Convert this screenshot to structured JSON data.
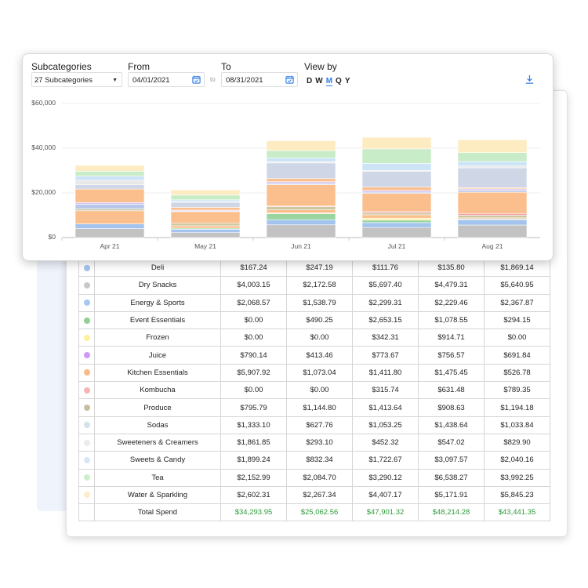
{
  "controls": {
    "subcategories_label": "Subcategories",
    "subcategories_value": "27 Subcategories",
    "from_label": "From",
    "from_value": "04/01/2021",
    "to_label": "To",
    "to_value": "08/31/2021",
    "to_separator": "to",
    "view_by_label": "View by",
    "view_options": [
      "D",
      "W",
      "M",
      "Q",
      "Y"
    ],
    "view_selected": "M"
  },
  "colors": {
    "accent": "#2c7be5",
    "total_green": "#2e9b3a"
  },
  "chart_data": {
    "type": "bar",
    "stacked": true,
    "categories": [
      "Apr 21",
      "May 21",
      "Jun 21",
      "Jul 21",
      "Aug 21"
    ],
    "y_ticks": [
      "$0",
      "$20,000",
      "$40,000",
      "$60,000"
    ],
    "ylim": [
      0,
      60000
    ],
    "grid": true,
    "series": [
      {
        "color": "#c2c2c2",
        "values": [
          4000,
          2200,
          5700,
          4500,
          5600
        ]
      },
      {
        "color": "#a4c4ee",
        "values": [
          2100,
          1500,
          2300,
          2200,
          2400
        ]
      },
      {
        "color": "#9ad5a0",
        "values": [
          0,
          500,
          2700,
          1100,
          300
        ]
      },
      {
        "color": "#fff1a8",
        "values": [
          0,
          0,
          300,
          900,
          0
        ]
      },
      {
        "color": "#fbbf8e",
        "values": [
          5900,
          1100,
          1400,
          1500,
          500
        ]
      },
      {
        "color": "#cfc7a0",
        "values": [
          800,
          1100,
          1400,
          900,
          1200
        ]
      },
      {
        "color": "#f4a0a0",
        "values": [
          0,
          0,
          300,
          600,
          800
        ]
      },
      {
        "color": "#fbbf8e",
        "values": [
          0,
          5200,
          9600,
          8100,
          9500
        ]
      },
      {
        "color": "#b9c8e8",
        "values": [
          2100,
          300,
          500,
          500,
          800
        ]
      },
      {
        "color": "#d8c4f0",
        "values": [
          800,
          400,
          800,
          800,
          700
        ]
      },
      {
        "color": "#fbbf8e",
        "values": [
          6000,
          1200,
          1400,
          1500,
          500
        ]
      },
      {
        "color": "#cfd6e6",
        "values": [
          2000,
          2300,
          7000,
          7000,
          8900
        ]
      },
      {
        "color": "#e8e8e8",
        "values": [
          1900,
          300,
          500,
          500,
          800
        ]
      },
      {
        "color": "#cde4f7",
        "values": [
          1900,
          800,
          1700,
          3100,
          2000
        ]
      },
      {
        "color": "#c8ebc8",
        "values": [
          2200,
          2100,
          3300,
          6500,
          4000
        ]
      },
      {
        "color": "#fdebc2",
        "values": [
          2600,
          2300,
          4400,
          5200,
          5800
        ]
      }
    ]
  },
  "table": {
    "rows": [
      {
        "color": "#a4c4ee",
        "name": "Deli",
        "values": [
          "$167.24",
          "$247.19",
          "$111.76",
          "$135.80",
          "$1,869.14"
        ]
      },
      {
        "color": "#c8c8c8",
        "name": "Dry Snacks",
        "values": [
          "$4,003.15",
          "$2,172.58",
          "$5,697.40",
          "$4,479.31",
          "$5,640.95"
        ]
      },
      {
        "color": "#a6c8f5",
        "name": "Energy & Sports",
        "values": [
          "$2,068.57",
          "$1,538.79",
          "$2,299.31",
          "$2,229.46",
          "$2,367.87"
        ]
      },
      {
        "color": "#8fd092",
        "name": "Event Essentials",
        "values": [
          "$0.00",
          "$490.25",
          "$2,653.15",
          "$1,078.55",
          "$294.15"
        ]
      },
      {
        "color": "#fff09a",
        "name": "Frozen",
        "values": [
          "$0.00",
          "$0.00",
          "$342.31",
          "$914.71",
          "$0.00"
        ]
      },
      {
        "color": "#cf9af5",
        "name": "Juice",
        "values": [
          "$790.14",
          "$413.46",
          "$773.67",
          "$756.57",
          "$691.84"
        ]
      },
      {
        "color": "#fbbb88",
        "name": "Kitchen Essentials",
        "values": [
          "$5,907.92",
          "$1,073.04",
          "$1,411.80",
          "$1,475.45",
          "$526.78"
        ]
      },
      {
        "color": "#f7b4b4",
        "name": "Kombucha",
        "values": [
          "$0.00",
          "$0.00",
          "$315.74",
          "$631.48",
          "$789.35"
        ]
      },
      {
        "color": "#c5c0a0",
        "name": "Produce",
        "values": [
          "$795.79",
          "$1,144.80",
          "$1,413.64",
          "$908.63",
          "$1,194.18"
        ]
      },
      {
        "color": "#d4e2ea",
        "name": "Sodas",
        "values": [
          "$1,333.10",
          "$627.76",
          "$1,053.25",
          "$1,438.64",
          "$1,033.84"
        ]
      },
      {
        "color": "#ececec",
        "name": "Sweeteners & Creamers",
        "values": [
          "$1,861.85",
          "$293.10",
          "$452.32",
          "$547.02",
          "$829.90"
        ]
      },
      {
        "color": "#d6e8fa",
        "name": "Sweets & Candy",
        "values": [
          "$1,899.24",
          "$832.34",
          "$1,722.67",
          "$3,097.57",
          "$2,040.16"
        ]
      },
      {
        "color": "#cdeecb",
        "name": "Tea",
        "values": [
          "$2,152.99",
          "$2,084.70",
          "$3,290.12",
          "$6,538.27",
          "$3,992.25"
        ]
      },
      {
        "color": "#fdeec8",
        "name": "Water & Sparkling",
        "values": [
          "$2,602.31",
          "$2,267.34",
          "$4,407.17",
          "$5,171.91",
          "$5,845.23"
        ]
      }
    ],
    "total": {
      "name": "Total Spend",
      "values": [
        "$34,293.95",
        "$25,062.56",
        "$47,901.32",
        "$48,214.28",
        "$43,441.35"
      ]
    }
  }
}
